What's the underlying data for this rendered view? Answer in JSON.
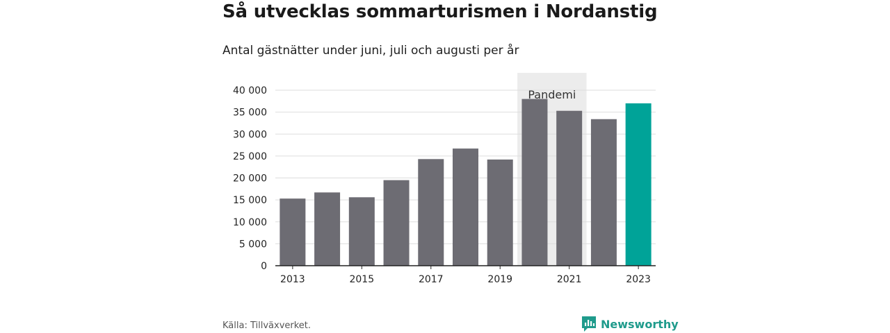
{
  "title": "Så utvecklas sommarturismen i Nordanstig",
  "subtitle": "Antal gästnätter under juni, juli och augusti per år",
  "source": "Källa: Tillväxverket.",
  "brand": {
    "name": "Newsworthy",
    "icon": "newsworthy-logo-icon"
  },
  "colors": {
    "bar": "#6d6c73",
    "highlight": "#00a398",
    "band": "#ececec",
    "grid": "#dddddd",
    "axis": "#222222"
  },
  "chart_data": {
    "type": "bar",
    "title": "Så utvecklas sommarturismen i Nordanstig",
    "subtitle": "Antal gästnätter under juni, juli och augusti per år",
    "xlabel": "",
    "ylabel": "",
    "categories": [
      "2013",
      "2014",
      "2015",
      "2016",
      "2017",
      "2018",
      "2019",
      "2020",
      "2021",
      "2022",
      "2023"
    ],
    "values": [
      15300,
      16700,
      15600,
      19500,
      24300,
      26700,
      24200,
      38000,
      35300,
      33400,
      37000
    ],
    "highlight": "2023",
    "x_tick_labels": [
      "2013",
      "2015",
      "2017",
      "2019",
      "2021",
      "2023"
    ],
    "ylim": [
      0,
      40000
    ],
    "y_ticks": [
      0,
      5000,
      10000,
      15000,
      20000,
      25000,
      30000,
      35000,
      40000
    ],
    "y_tick_labels": [
      "0",
      "5 000",
      "10 000",
      "15 000",
      "20 000",
      "25 000",
      "30 000",
      "35 000",
      "40 000"
    ],
    "grid": true,
    "annotation": {
      "label": "Pandemi",
      "from": "2020",
      "to": "2021"
    }
  }
}
